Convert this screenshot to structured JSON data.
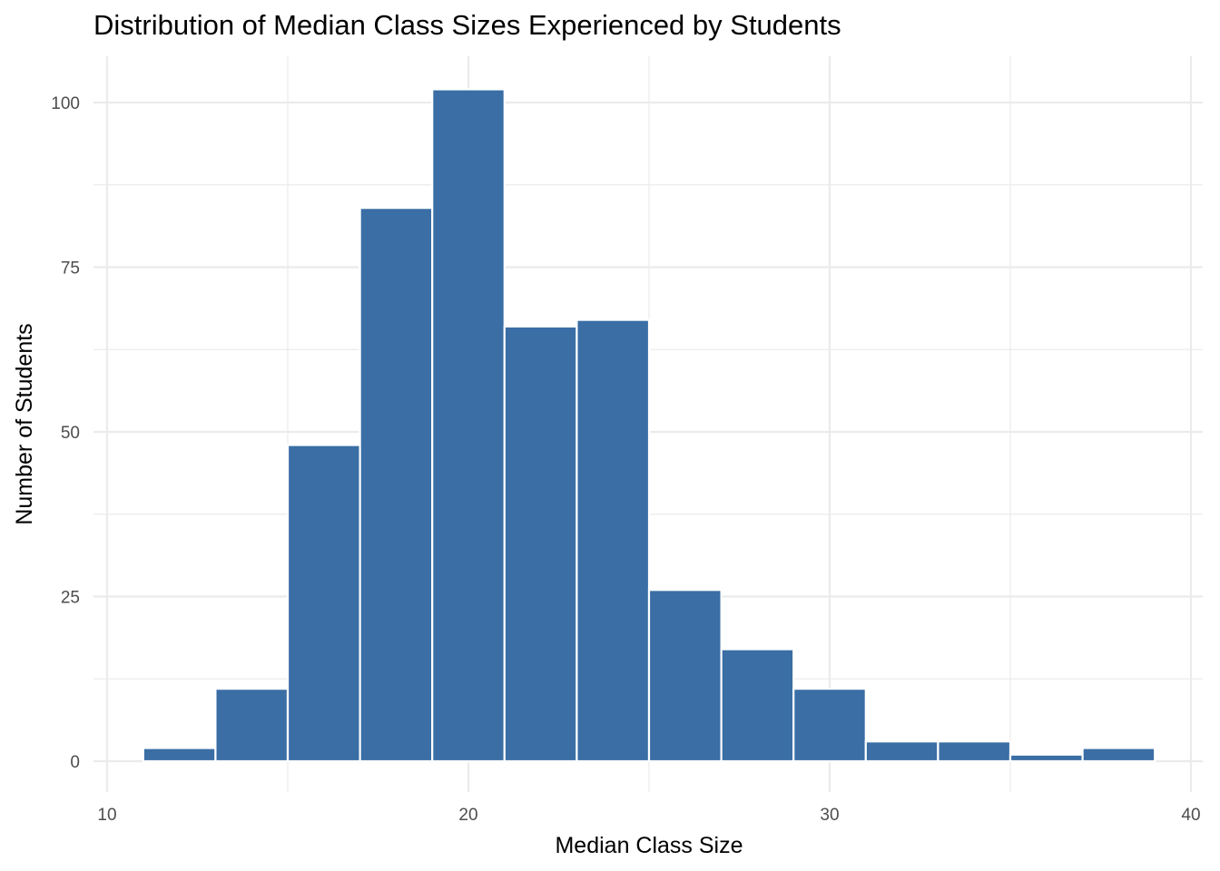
{
  "chart_data": {
    "type": "bar",
    "title": "Distribution of Median Class Sizes Experienced by Students",
    "xlabel": "Median Class Size",
    "ylabel": "Number of Students",
    "bin_width": 2,
    "bins": [
      {
        "x0": 11,
        "x1": 13,
        "count": 2
      },
      {
        "x0": 13,
        "x1": 15,
        "count": 11
      },
      {
        "x0": 15,
        "x1": 17,
        "count": 48
      },
      {
        "x0": 17,
        "x1": 19,
        "count": 84
      },
      {
        "x0": 19,
        "x1": 21,
        "count": 102
      },
      {
        "x0": 21,
        "x1": 23,
        "count": 66
      },
      {
        "x0": 23,
        "x1": 25,
        "count": 67
      },
      {
        "x0": 25,
        "x1": 27,
        "count": 26
      },
      {
        "x0": 27,
        "x1": 29,
        "count": 17
      },
      {
        "x0": 29,
        "x1": 31,
        "count": 11
      },
      {
        "x0": 31,
        "x1": 33,
        "count": 3
      },
      {
        "x0": 33,
        "x1": 35,
        "count": 3
      },
      {
        "x0": 35,
        "x1": 37,
        "count": 1
      },
      {
        "x0": 37,
        "x1": 39,
        "count": 2
      }
    ],
    "xlim": [
      10,
      40
    ],
    "ylim": [
      0,
      105
    ],
    "x_ticks": [
      10,
      20,
      30,
      40
    ],
    "x_minor_ticks": [
      15,
      25,
      35
    ],
    "y_ticks": [
      0,
      25,
      50,
      75,
      100
    ],
    "y_minor_ticks": [
      12.5,
      37.5,
      62.5,
      87.5
    ],
    "bar_color": "#3a6ea5",
    "bar_edge_color": "#ffffff",
    "grid": true,
    "grid_color": "#ebebeb",
    "legend": "none"
  }
}
